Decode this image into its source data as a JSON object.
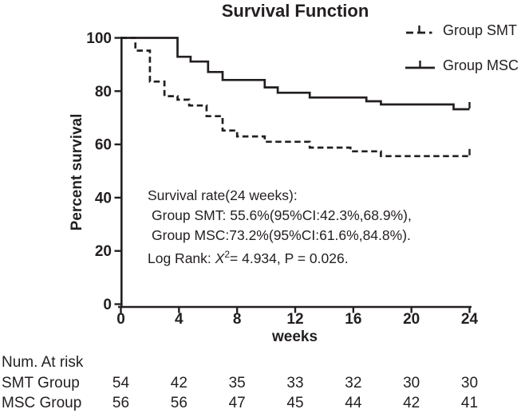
{
  "title": "Survival Function",
  "legend": {
    "smt": {
      "label": "Group SMT",
      "style": "dashed"
    },
    "msc": {
      "label": "Group MSC",
      "style": "solid"
    }
  },
  "annotation": {
    "line1": "Survival rate(24 weeks):",
    "line2": "Group SMT: 55.6%(95%CI:42.3%,68.9%),",
    "line3": "Group MSC:73.2%(95%CI:61.6%,84.8%).",
    "logrank_prefix": "Log Rank: ",
    "logrank_chi": "X",
    "logrank_exp": "2",
    "logrank_rest": "= 4.934, P = 0.026."
  },
  "risk_table": {
    "header": "Num. At risk",
    "rows": [
      {
        "label": "SMT Group",
        "values": [
          "54",
          "42",
          "35",
          "33",
          "32",
          "30",
          "30"
        ]
      },
      {
        "label": "MSC Group",
        "values": [
          "56",
          "56",
          "47",
          "45",
          "44",
          "42",
          "41"
        ]
      }
    ]
  },
  "colors": {
    "ink": "#231f20",
    "background": "#ffffff"
  },
  "chart_data": {
    "type": "line",
    "subtype": "kaplan-meier-step",
    "title": "Survival Function",
    "xlabel": "weeks",
    "ylabel": "Percent survival",
    "xlim": [
      0,
      24
    ],
    "ylim": [
      0,
      100
    ],
    "x_ticks": [
      0,
      4,
      8,
      12,
      16,
      20,
      24
    ],
    "y_ticks": [
      0,
      20,
      40,
      60,
      80,
      100
    ],
    "grid": false,
    "legend_position": "top-right",
    "series": [
      {
        "name": "Group SMT",
        "style": "dashed",
        "end_tick": true,
        "points": [
          [
            0,
            100
          ],
          [
            1,
            95.2
          ],
          [
            2,
            83.6
          ],
          [
            3,
            78.1
          ],
          [
            3.9,
            76.8
          ],
          [
            4.7,
            74.6
          ],
          [
            5.9,
            70.6
          ],
          [
            7,
            65.2
          ],
          [
            8,
            63.0
          ],
          [
            9.9,
            61.0
          ],
          [
            13,
            58.8
          ],
          [
            15.8,
            57.4
          ],
          [
            17.9,
            55.6
          ],
          [
            24,
            55.6
          ]
        ]
      },
      {
        "name": "Group MSC",
        "style": "solid",
        "end_tick": true,
        "points": [
          [
            0,
            100
          ],
          [
            3.9,
            92.9
          ],
          [
            4.8,
            91.1
          ],
          [
            6,
            87.2
          ],
          [
            7,
            84.2
          ],
          [
            9.9,
            81.4
          ],
          [
            10.8,
            79.4
          ],
          [
            13,
            77.6
          ],
          [
            16.9,
            76.2
          ],
          [
            17.9,
            75.0
          ],
          [
            22.9,
            73.2
          ],
          [
            24,
            73.2
          ]
        ]
      }
    ]
  }
}
